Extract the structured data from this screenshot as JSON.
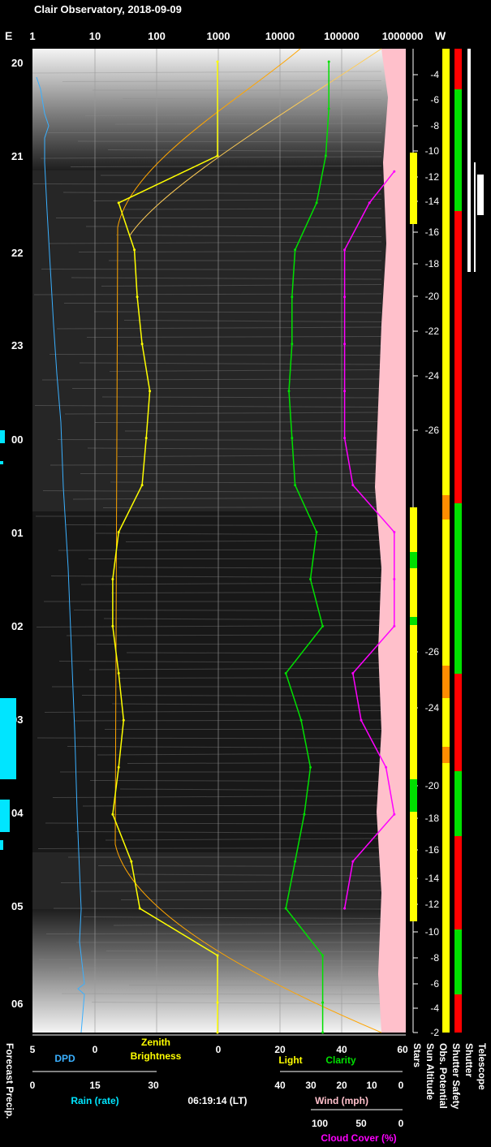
{
  "chart_data": {
    "type": "line",
    "title": "Clair Observatory, 2018-09-09",
    "corner_left": "E",
    "corner_right": "W",
    "top_axis_ticks": [
      "1",
      "10",
      "100",
      "1000",
      "10000",
      "100000",
      "1000000"
    ],
    "time_ticks": [
      "20",
      "21",
      "22",
      "23",
      "00",
      "01",
      "02",
      "03",
      "04",
      "05",
      "06"
    ],
    "sun_altitude_ticks": [
      "-4",
      "-6",
      "-8",
      "-10",
      "-12",
      "-14",
      "-16",
      "-18",
      "-20",
      "-22",
      "-24",
      "-26",
      "-26",
      "-24",
      "-20",
      "-18",
      "-16",
      "-14",
      "-12",
      "-10",
      "-8",
      "-6",
      "-4",
      "-2"
    ],
    "scales": {
      "dpd": {
        "label": "DPD",
        "ticks": [
          "5",
          "0"
        ]
      },
      "zenith": {
        "label_line1": "Zenith",
        "label_line2": "Brightness",
        "ticks": [
          "0"
        ]
      },
      "light": {
        "label": "Light",
        "ticks": [
          "20",
          "40",
          "60"
        ]
      },
      "clarity": {
        "label": "Clarity"
      },
      "rain": {
        "label": "Rain (rate)",
        "ticks": [
          "0",
          "15",
          "30"
        ]
      },
      "wind": {
        "label": "Wind (mph)",
        "ticks": [
          "40",
          "30",
          "20",
          "10",
          "0"
        ]
      },
      "cloud": {
        "label": "Cloud Cover (%)",
        "ticks": [
          "100",
          "50",
          "0"
        ]
      }
    },
    "timestamp": "06:19:14 (LT)",
    "vertical_labels": {
      "forecast": "Forecast Precip.",
      "stars": "Stars",
      "sun_altitude": "Sun Altitude",
      "obs_potential": "Obs. Potential",
      "shutter_safety": "Shutter Safety",
      "shutter": "Shutter",
      "telescope": "Telescope"
    },
    "series": [
      {
        "name": "Zenith Brightness",
        "color": "#ffff00",
        "x": [
          "20:00",
          "21:00",
          "21:30",
          "22:00",
          "22:30",
          "23:00",
          "23:30",
          "00:00",
          "00:30",
          "01:00",
          "01:30",
          "02:00",
          "02:30",
          "03:00",
          "03:30",
          "04:00",
          "04:30",
          "05:00",
          "05:30",
          "06:00",
          "06:20"
        ],
        "y": [
          1000,
          1000,
          25,
          45,
          50,
          60,
          80,
          70,
          60,
          25,
          20,
          20,
          25,
          30,
          25,
          20,
          40,
          55,
          1000,
          1000,
          1000
        ]
      },
      {
        "name": "Clarity",
        "color": "#00e000",
        "x": [
          "20:00",
          "20:30",
          "21:00",
          "21:30",
          "22:00",
          "22:30",
          "23:00",
          "23:30",
          "00:00",
          "00:30",
          "01:00",
          "01:30",
          "02:00",
          "02:30",
          "03:00",
          "03:30",
          "04:00",
          "04:30",
          "05:00",
          "05:30",
          "06:00",
          "06:20"
        ],
        "y": [
          36,
          36,
          35,
          32,
          25,
          24,
          24,
          23,
          24,
          25,
          32,
          30,
          34,
          22,
          27,
          30,
          28,
          25,
          22,
          34,
          34,
          34
        ]
      },
      {
        "name": "Cloud Cover (%)",
        "color": "#ff00ff",
        "x": [
          "21:10",
          "21:30",
          "22:00",
          "22:30",
          "23:00",
          "23:30",
          "00:00",
          "00:30",
          "01:00",
          "01:30",
          "02:00",
          "02:30",
          "03:00",
          "03:30",
          "04:00",
          "04:30",
          "05:00"
        ],
        "y": [
          10,
          40,
          70,
          70,
          70,
          70,
          70,
          60,
          10,
          10,
          10,
          60,
          50,
          20,
          10,
          60,
          70
        ]
      }
    ]
  }
}
